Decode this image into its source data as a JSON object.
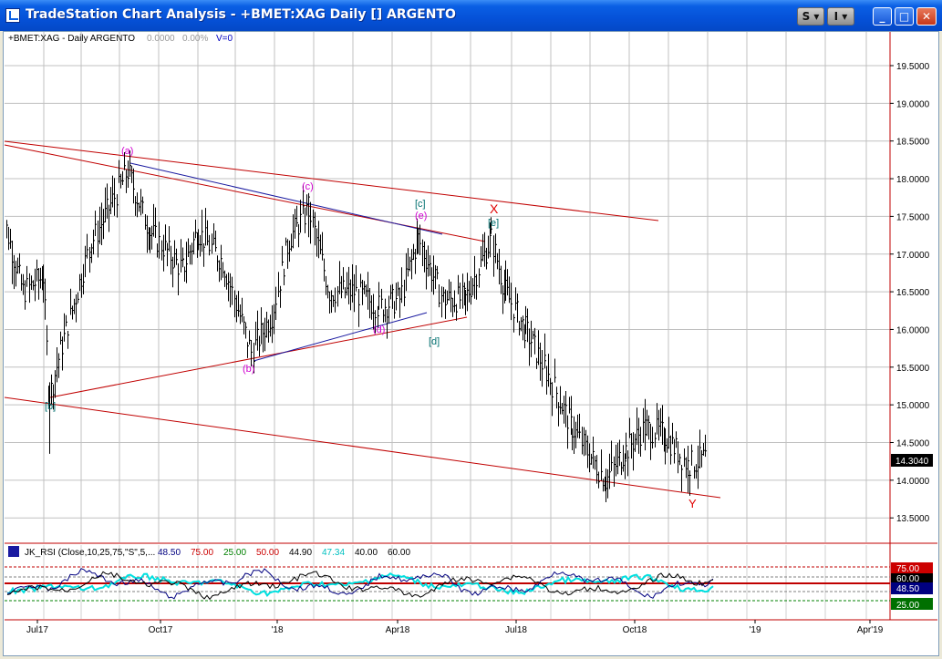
{
  "window": {
    "title": "TradeStation Chart Analysis  - +BMET:XAG Daily [] ARGENTO",
    "buttons": {
      "s_label": "S",
      "i_label": "I",
      "minimize": "_",
      "maximize": "□",
      "close": "✕"
    }
  },
  "chart_header": {
    "symbol": "+BMET:XAG - Daily  ARGENTO",
    "change": "0.0000",
    "pct": "0.00%",
    "volume": "V=0"
  },
  "price_axis": {
    "labels": [
      "19.5000",
      "19.0000",
      "18.5000",
      "18.0000",
      "17.5000",
      "17.0000",
      "16.5000",
      "16.0000",
      "15.5000",
      "15.0000",
      "14.5000",
      "14.0000",
      "13.5000"
    ],
    "last_price": "14.3040"
  },
  "indicator": {
    "name": "JK_RSI (Close,10,25,75,\"S\",5,...",
    "values": [
      "48.50",
      "75.00",
      "25.00",
      "50.00",
      "44.90",
      "47.34",
      "40.00",
      "60.00"
    ],
    "value_colors": [
      "#000080",
      "#cc0000",
      "#008000",
      "#cc0000",
      "#000000",
      "#00c0c0",
      "#000000",
      "#000000"
    ],
    "axis_labels": {
      "upper": "75.00",
      "mid_upper": "60.00",
      "current": "48.50",
      "lower": "25.00"
    }
  },
  "time_axis": [
    "Jul17",
    "Oct17",
    "'18",
    "Apr18",
    "Jul18",
    "Oct18",
    "'19",
    "Apr'19"
  ],
  "wave_labels": {
    "a": "(a)",
    "b": "(b)",
    "c": "(c)",
    "d": "(d)",
    "e": "(e)",
    "ib": "[b]",
    "ic": "[c]",
    "id": "[d]",
    "ie": "[e]",
    "X": "X",
    "Y": "Y"
  },
  "colors": {
    "bars": "#000000",
    "trendline_red": "#c00000",
    "trendline_blue": "#1a1aa0",
    "magenta": "#d000d0",
    "teal": "#007070",
    "rsi_cyan": "#00e0e0",
    "rsi_navy": "#000080",
    "grid": "#c0c0c0"
  },
  "chart_data": {
    "type": "line",
    "title": "+BMET:XAG - Daily  ARGENTO",
    "x": [
      "Jul17",
      "Oct17",
      "'18",
      "Apr18",
      "Jul18",
      "Oct18",
      "'19",
      "Apr'19"
    ],
    "ylim": [
      13.3,
      20.0
    ],
    "series": [
      {
        "values_by_month": [
          {
            "date": "2017-06-01",
            "close": 17.7
          },
          {
            "date": "2017-06-20",
            "close": 16.5
          },
          {
            "date": "2017-07-05",
            "close": 16.7
          },
          {
            "date": "2017-07-10",
            "close": 15.1
          },
          {
            "date": "2017-07-20",
            "close": 15.8
          },
          {
            "date": "2017-08-10",
            "close": 17.1
          },
          {
            "date": "2017-09-08",
            "close": 18.1
          },
          {
            "date": "2017-09-25",
            "close": 17.3
          },
          {
            "date": "2017-10-20",
            "close": 16.8
          },
          {
            "date": "2017-11-01",
            "close": 17.3
          },
          {
            "date": "2017-11-20",
            "close": 16.9
          },
          {
            "date": "2017-12-12",
            "close": 15.7
          },
          {
            "date": "2017-12-28",
            "close": 16.2
          },
          {
            "date": "2018-01-10",
            "close": 17.2
          },
          {
            "date": "2018-01-25",
            "close": 17.6
          },
          {
            "date": "2018-02-10",
            "close": 16.5
          },
          {
            "date": "2018-03-01",
            "close": 16.5
          },
          {
            "date": "2018-03-20",
            "close": 16.3
          },
          {
            "date": "2018-04-05",
            "close": 16.4
          },
          {
            "date": "2018-04-19",
            "close": 17.2
          },
          {
            "date": "2018-05-08",
            "close": 16.4
          },
          {
            "date": "2018-05-25",
            "close": 16.4
          },
          {
            "date": "2018-06-14",
            "close": 17.2
          },
          {
            "date": "2018-06-25",
            "close": 16.5
          },
          {
            "date": "2018-07-10",
            "close": 16.0
          },
          {
            "date": "2018-07-25",
            "close": 15.5
          },
          {
            "date": "2018-08-15",
            "close": 14.7
          },
          {
            "date": "2018-09-10",
            "close": 14.0
          },
          {
            "date": "2018-09-25",
            "close": 14.4
          },
          {
            "date": "2018-10-10",
            "close": 14.7
          },
          {
            "date": "2018-10-25",
            "close": 14.6
          },
          {
            "date": "2018-11-12",
            "close": 14.2
          },
          {
            "date": "2018-11-26",
            "close": 14.3
          }
        ]
      }
    ]
  }
}
